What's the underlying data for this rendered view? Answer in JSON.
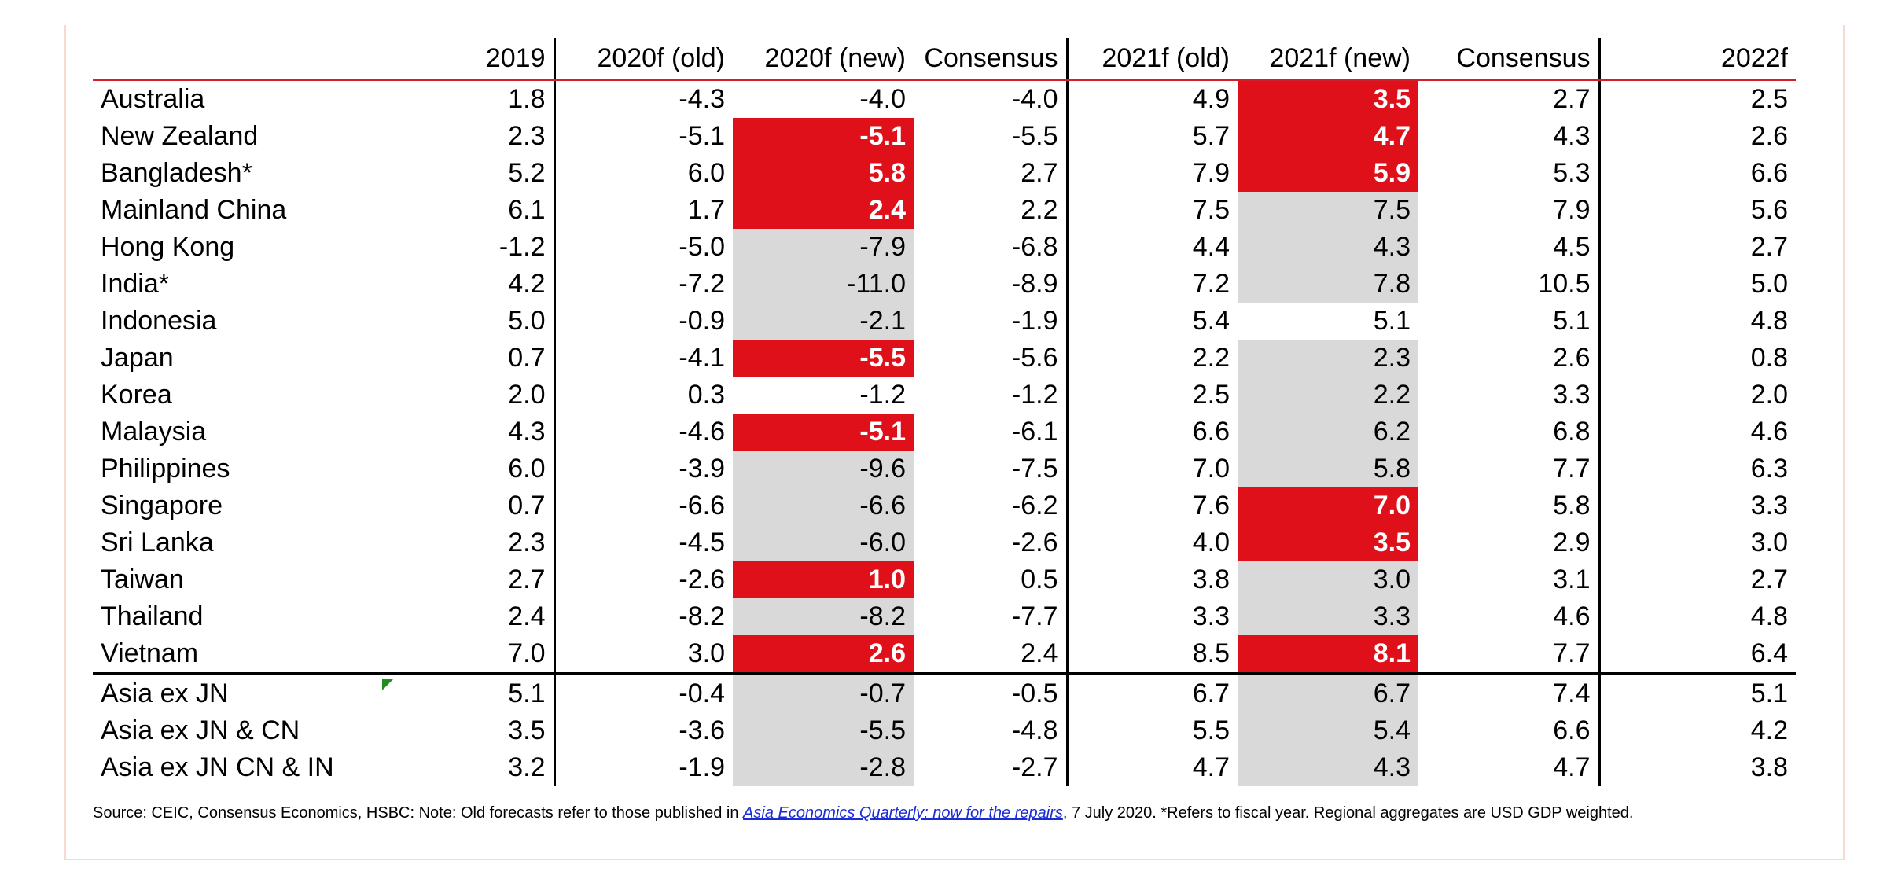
{
  "table": {
    "headers": [
      "",
      "2019",
      "2020f (old)",
      "2020f (new)",
      "Consensus",
      "2021f (old)",
      "2021f (new)",
      "Consensus",
      "2022f"
    ],
    "rows": [
      [
        "Australia",
        "1.8",
        "-4.3",
        "-4.0",
        "-4.0",
        "4.9",
        "3.5",
        "2.7",
        "2.5"
      ],
      [
        "New Zealand",
        "2.3",
        "-5.1",
        "-5.1",
        "-5.5",
        "5.7",
        "4.7",
        "4.3",
        "2.6"
      ],
      [
        "Bangladesh*",
        "5.2",
        "6.0",
        "5.8",
        "2.7",
        "7.9",
        "5.9",
        "5.3",
        "6.6"
      ],
      [
        "Mainland China",
        "6.1",
        "1.7",
        "2.4",
        "2.2",
        "7.5",
        "7.5",
        "7.9",
        "5.6"
      ],
      [
        "Hong Kong",
        "-1.2",
        "-5.0",
        "-7.9",
        "-6.8",
        "4.4",
        "4.3",
        "4.5",
        "2.7"
      ],
      [
        "India*",
        "4.2",
        "-7.2",
        "-11.0",
        "-8.9",
        "7.2",
        "7.8",
        "10.5",
        "5.0"
      ],
      [
        "Indonesia",
        "5.0",
        "-0.9",
        "-2.1",
        "-1.9",
        "5.4",
        "5.1",
        "5.1",
        "4.8"
      ],
      [
        "Japan",
        "0.7",
        "-4.1",
        "-5.5",
        "-5.6",
        "2.2",
        "2.3",
        "2.6",
        "0.8"
      ],
      [
        "Korea",
        "2.0",
        "0.3",
        "-1.2",
        "-1.2",
        "2.5",
        "2.2",
        "3.3",
        "2.0"
      ],
      [
        "Malaysia",
        "4.3",
        "-4.6",
        "-5.1",
        "-6.1",
        "6.6",
        "6.2",
        "6.8",
        "4.6"
      ],
      [
        "Philippines",
        "6.0",
        "-3.9",
        "-9.6",
        "-7.5",
        "7.0",
        "5.8",
        "7.7",
        "6.3"
      ],
      [
        "Singapore",
        "0.7",
        "-6.6",
        "-6.6",
        "-6.2",
        "7.6",
        "7.0",
        "5.8",
        "3.3"
      ],
      [
        "Sri Lanka",
        "2.3",
        "-4.5",
        "-6.0",
        "-2.6",
        "4.0",
        "3.5",
        "2.9",
        "3.0"
      ],
      [
        "Taiwan",
        "2.7",
        "-2.6",
        "1.0",
        "0.5",
        "3.8",
        "3.0",
        "3.1",
        "2.7"
      ],
      [
        "Thailand",
        "2.4",
        "-8.2",
        "-8.2",
        "-7.7",
        "3.3",
        "3.3",
        "4.6",
        "4.8"
      ],
      [
        "Vietnam",
        "7.0",
        "3.0",
        "2.6",
        "2.4",
        "8.5",
        "8.1",
        "7.7",
        "6.4"
      ],
      [
        "Asia ex JN",
        "5.1",
        "-0.4",
        "-0.7",
        "-0.5",
        "6.7",
        "6.7",
        "7.4",
        "5.1"
      ],
      [
        "Asia ex JN & CN",
        "3.5",
        "-3.6",
        "-5.5",
        "-4.8",
        "5.5",
        "5.4",
        "6.6",
        "4.2"
      ],
      [
        "Asia ex JN CN & IN",
        "3.2",
        "-1.9",
        "-2.8",
        "-2.7",
        "4.7",
        "4.3",
        "4.7",
        "3.8"
      ]
    ],
    "highlights": {
      "2020f_new": [
        "",
        "red",
        "red",
        "red",
        "grey",
        "grey",
        "grey",
        "red",
        "",
        "red",
        "grey",
        "grey",
        "grey",
        "red",
        "grey",
        "red",
        "grey",
        "grey",
        "grey"
      ],
      "2021f_new": [
        "red",
        "red",
        "red",
        "grey",
        "grey",
        "grey",
        "",
        "grey",
        "grey",
        "grey",
        "grey",
        "red",
        "red",
        "grey",
        "grey",
        "red",
        "grey",
        "grey",
        "grey"
      ]
    },
    "regional_start_index": 16
  },
  "colors": {
    "red_highlight": "#e0101a",
    "grey_highlight": "#d9d9d9",
    "header_rule": "#d2202a"
  },
  "source": {
    "prefix": "Source: CEIC, Consensus Economics, HSBC: Note: Old forecasts refer to those published in ",
    "link_text": "Asia Economics Quarterly: now for the repairs",
    "suffix": ", 7 July 2020. *Refers to fiscal year. Regional aggregates are USD GDP weighted."
  }
}
